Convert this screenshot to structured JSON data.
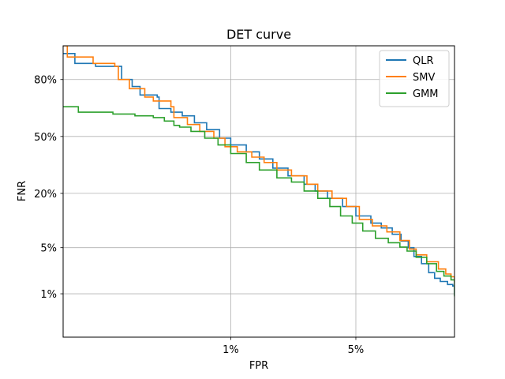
{
  "chart_data": {
    "type": "line",
    "title": "DET curve",
    "xlabel": "FPR",
    "ylabel": "FNR",
    "x_scale": "probit",
    "y_scale": "probit",
    "xlim": [
      0.0006,
      0.134
    ],
    "ylim": [
      0.0015,
      0.91
    ],
    "x_ticks": [
      {
        "value": 0.01,
        "label": "1%"
      },
      {
        "value": 0.05,
        "label": "5%"
      }
    ],
    "y_ticks": [
      {
        "value": 0.01,
        "label": "1%"
      },
      {
        "value": 0.05,
        "label": "5%"
      },
      {
        "value": 0.2,
        "label": "20%"
      },
      {
        "value": 0.5,
        "label": "50%"
      },
      {
        "value": 0.8,
        "label": "80%"
      }
    ],
    "grid": true,
    "legend_position": "top-right",
    "series": [
      {
        "name": "QLR",
        "color": "#1f77b4",
        "points": [
          [
            0.0006,
            0.89
          ],
          [
            0.00075,
            0.86
          ],
          [
            0.0011,
            0.85
          ],
          [
            0.00175,
            0.8
          ],
          [
            0.0021,
            0.77
          ],
          [
            0.0024,
            0.73
          ],
          [
            0.0032,
            0.72
          ],
          [
            0.0033,
            0.66
          ],
          [
            0.004,
            0.64
          ],
          [
            0.0048,
            0.62
          ],
          [
            0.0058,
            0.58
          ],
          [
            0.007,
            0.54
          ],
          [
            0.0085,
            0.49
          ],
          [
            0.01,
            0.45
          ],
          [
            0.0125,
            0.41
          ],
          [
            0.015,
            0.37
          ],
          [
            0.018,
            0.32
          ],
          [
            0.022,
            0.28
          ],
          [
            0.027,
            0.24
          ],
          [
            0.031,
            0.21
          ],
          [
            0.036,
            0.18
          ],
          [
            0.043,
            0.15
          ],
          [
            0.05,
            0.12
          ],
          [
            0.059,
            0.1
          ],
          [
            0.066,
            0.088
          ],
          [
            0.074,
            0.074
          ],
          [
            0.081,
            0.061
          ],
          [
            0.087,
            0.05
          ],
          [
            0.092,
            0.038
          ],
          [
            0.099,
            0.03
          ],
          [
            0.106,
            0.022
          ],
          [
            0.112,
            0.018
          ],
          [
            0.118,
            0.016
          ],
          [
            0.126,
            0.0143
          ],
          [
            0.132,
            0.0135
          ],
          [
            0.134,
            0.0095
          ]
        ]
      },
      {
        "name": "SMV",
        "color": "#ff7f0e",
        "points": [
          [
            0.0006,
            0.91
          ],
          [
            0.00065,
            0.88
          ],
          [
            0.00105,
            0.86
          ],
          [
            0.00155,
            0.85
          ],
          [
            0.00165,
            0.8
          ],
          [
            0.002,
            0.76
          ],
          [
            0.0026,
            0.72
          ],
          [
            0.003,
            0.7
          ],
          [
            0.004,
            0.67
          ],
          [
            0.0042,
            0.61
          ],
          [
            0.0052,
            0.57
          ],
          [
            0.0063,
            0.53
          ],
          [
            0.0078,
            0.49
          ],
          [
            0.0092,
            0.44
          ],
          [
            0.011,
            0.41
          ],
          [
            0.0135,
            0.38
          ],
          [
            0.016,
            0.35
          ],
          [
            0.019,
            0.31
          ],
          [
            0.023,
            0.28
          ],
          [
            0.028,
            0.24
          ],
          [
            0.032,
            0.21
          ],
          [
            0.038,
            0.18
          ],
          [
            0.045,
            0.15
          ],
          [
            0.052,
            0.11
          ],
          [
            0.06,
            0.093
          ],
          [
            0.07,
            0.079
          ],
          [
            0.08,
            0.062
          ],
          [
            0.088,
            0.048
          ],
          [
            0.094,
            0.04
          ],
          [
            0.104,
            0.032
          ],
          [
            0.116,
            0.025
          ],
          [
            0.124,
            0.021
          ],
          [
            0.13,
            0.019
          ],
          [
            0.134,
            0.0155
          ]
        ]
      },
      {
        "name": "GMM",
        "color": "#2ca02c",
        "points": [
          [
            0.0006,
            0.67
          ],
          [
            0.0008,
            0.64
          ],
          [
            0.0015,
            0.63
          ],
          [
            0.0022,
            0.62
          ],
          [
            0.003,
            0.61
          ],
          [
            0.0036,
            0.59
          ],
          [
            0.0042,
            0.565
          ],
          [
            0.0046,
            0.555
          ],
          [
            0.0055,
            0.53
          ],
          [
            0.0068,
            0.49
          ],
          [
            0.0083,
            0.45
          ],
          [
            0.01,
            0.4
          ],
          [
            0.0125,
            0.35
          ],
          [
            0.015,
            0.31
          ],
          [
            0.019,
            0.27
          ],
          [
            0.023,
            0.25
          ],
          [
            0.027,
            0.21
          ],
          [
            0.032,
            0.18
          ],
          [
            0.037,
            0.15
          ],
          [
            0.042,
            0.12
          ],
          [
            0.048,
            0.1
          ],
          [
            0.054,
            0.081
          ],
          [
            0.062,
            0.066
          ],
          [
            0.071,
            0.058
          ],
          [
            0.08,
            0.051
          ],
          [
            0.086,
            0.045
          ],
          [
            0.094,
            0.037
          ],
          [
            0.104,
            0.03
          ],
          [
            0.114,
            0.023
          ],
          [
            0.122,
            0.0195
          ],
          [
            0.13,
            0.017
          ],
          [
            0.134,
            0.012
          ],
          [
            0.134,
            0.009
          ]
        ]
      }
    ]
  }
}
